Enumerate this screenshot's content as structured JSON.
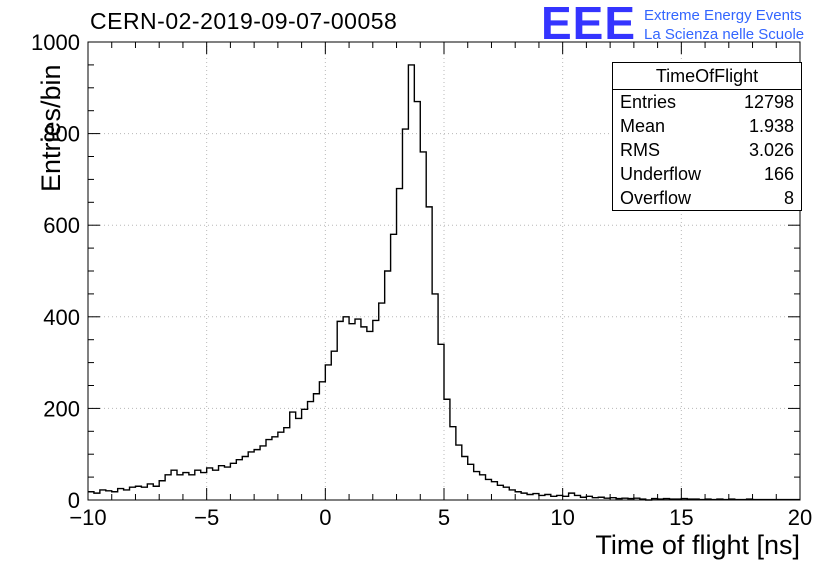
{
  "page": {
    "background": "#ffffff"
  },
  "header": {
    "title": "CERN-02-2019-09-07-00058",
    "logo": {
      "text": "EEE",
      "line1": "Extreme Energy Events",
      "line2": "La Scienza nelle Scuole",
      "color": "#3434ff",
      "line_color": "#3366ff"
    }
  },
  "stats": {
    "title": "TimeOfFlight",
    "rows": [
      {
        "label": "Entries",
        "value": "12798"
      },
      {
        "label": "Mean",
        "value": "1.938"
      },
      {
        "label": "RMS",
        "value": "3.026"
      },
      {
        "label": "Underflow",
        "value": "166"
      },
      {
        "label": "Overflow",
        "value": "8"
      }
    ]
  },
  "chart_data": {
    "type": "bar",
    "subtype": "step-histogram",
    "title": "CERN-02-2019-09-07-00058",
    "xlabel": "Time of flight [ns]",
    "ylabel": "Entries/bin",
    "xlim": [
      -10,
      20
    ],
    "ylim": [
      0,
      1000
    ],
    "x_ticks": [
      -10,
      -5,
      0,
      5,
      10,
      15,
      20
    ],
    "y_ticks": [
      0,
      200,
      400,
      600,
      800,
      1000
    ],
    "x_minor_step": 1,
    "y_minor_step": 50,
    "grid": true,
    "line_color": "#000000",
    "grid_color": "#b8b8b8",
    "bin_start": -10,
    "bin_width": 0.25,
    "counts": [
      18,
      15,
      22,
      20,
      18,
      25,
      22,
      28,
      30,
      28,
      35,
      30,
      42,
      55,
      65,
      55,
      60,
      55,
      65,
      60,
      70,
      65,
      75,
      72,
      80,
      88,
      95,
      105,
      110,
      118,
      132,
      138,
      148,
      158,
      192,
      178,
      198,
      215,
      232,
      258,
      295,
      325,
      390,
      400,
      385,
      395,
      378,
      368,
      392,
      430,
      500,
      580,
      680,
      810,
      950,
      870,
      760,
      640,
      450,
      340,
      220,
      160,
      120,
      95,
      78,
      62,
      55,
      45,
      40,
      32,
      28,
      22,
      18,
      15,
      12,
      14,
      10,
      12,
      8,
      10,
      8,
      15,
      10,
      6,
      8,
      5,
      6,
      4,
      5,
      3,
      4,
      3,
      4,
      2,
      0,
      3,
      2,
      3,
      2,
      2,
      3,
      2,
      2,
      1,
      2,
      1,
      2,
      1,
      2,
      1,
      1,
      2,
      1,
      1,
      1,
      1,
      1,
      1,
      1,
      1
    ]
  }
}
